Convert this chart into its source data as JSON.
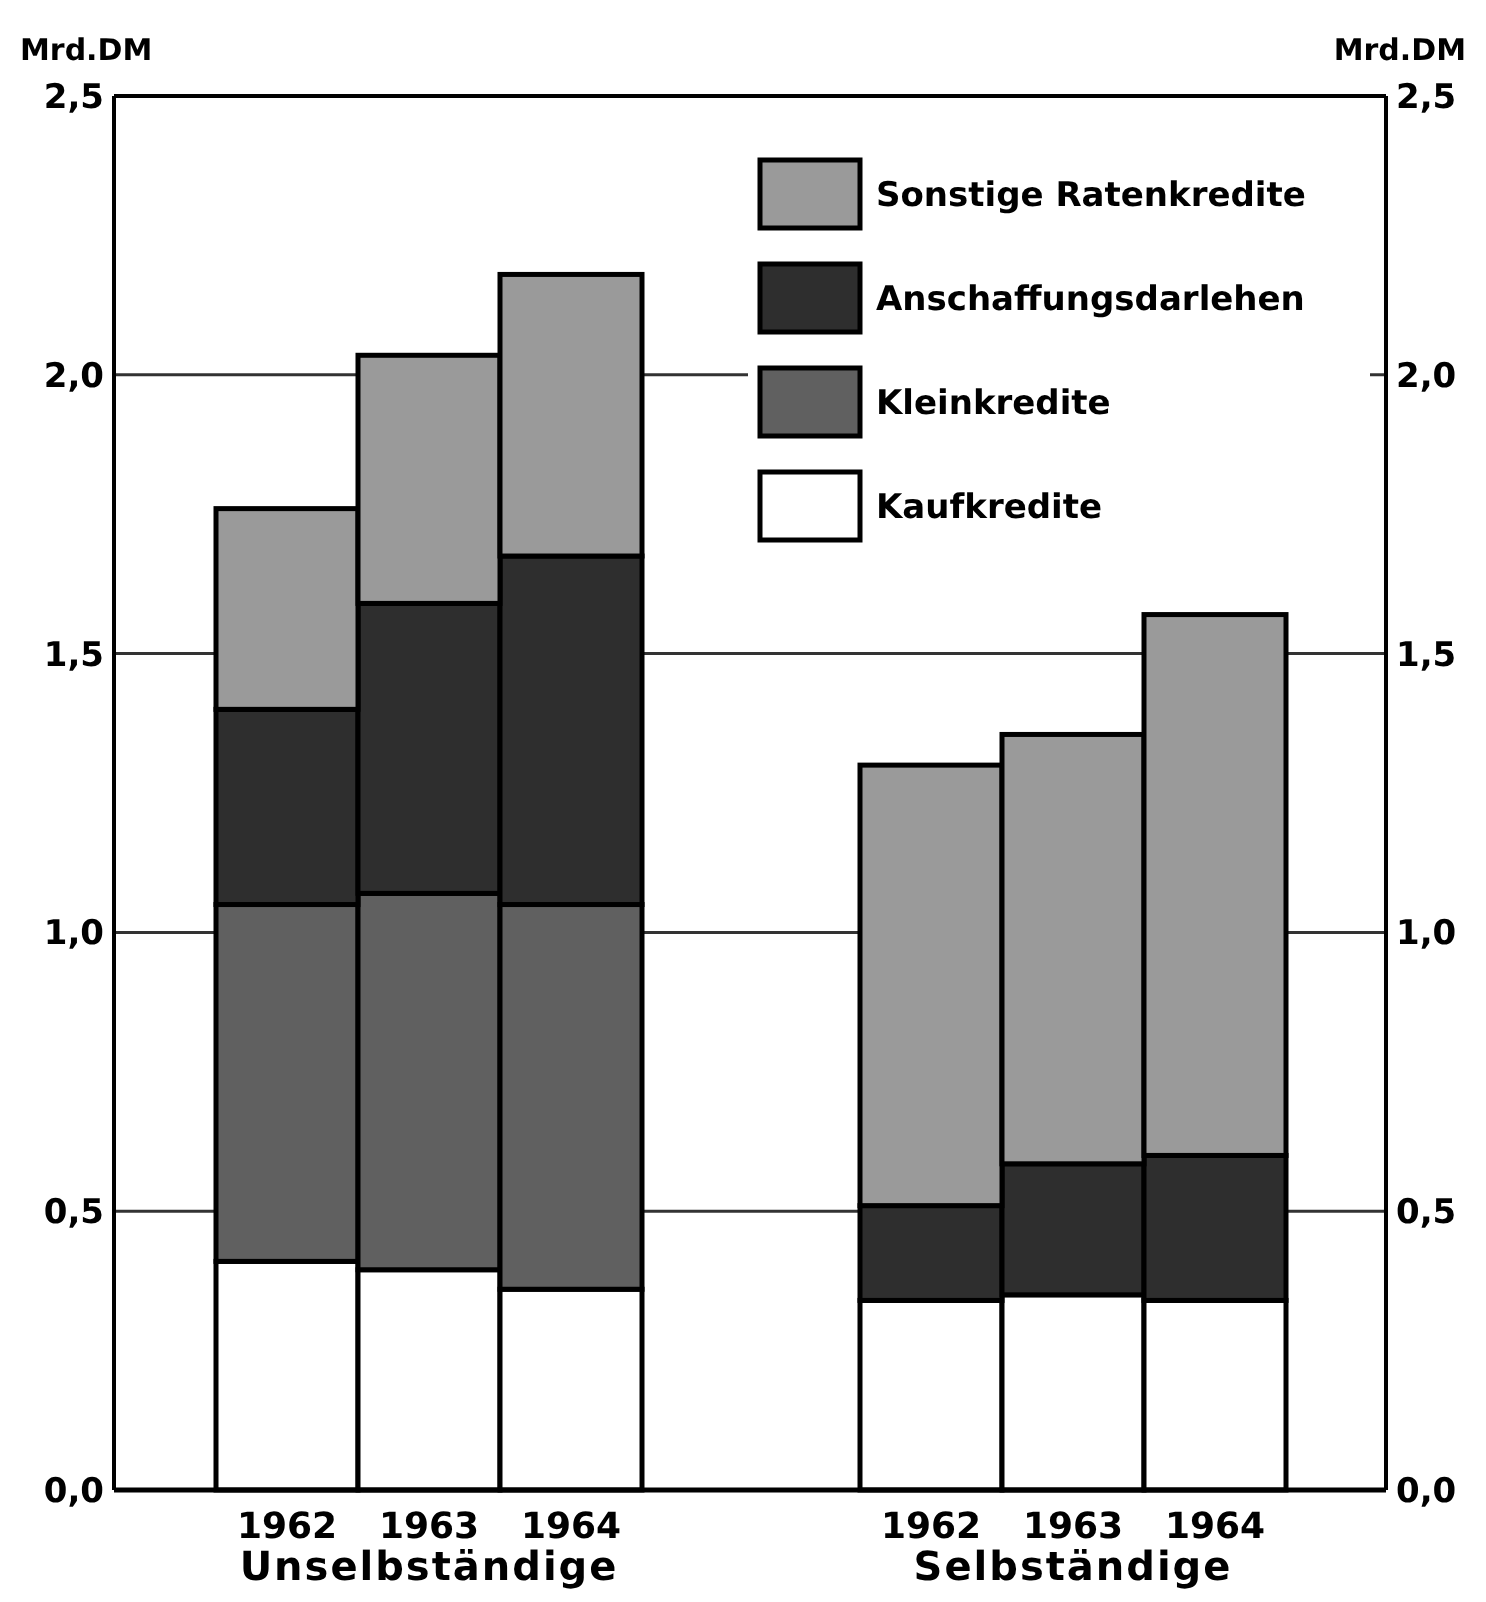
{
  "chart_data": {
    "type": "bar",
    "stacked": true,
    "categories": [
      "1962",
      "1963",
      "1964",
      "1962",
      "1963",
      "1964"
    ],
    "series": [
      {
        "name": "Kaufkredite",
        "color": "#ffffff",
        "values": [
          0.41,
          0.395,
          0.36,
          0.34,
          0.35,
          0.34
        ]
      },
      {
        "name": "Kleinkredite",
        "color": "#606060",
        "values": [
          0.64,
          0.675,
          0.69,
          null,
          null,
          null
        ]
      },
      {
        "name": "Anschaffungsdarlehen",
        "color": "#2e2e2e",
        "values": [
          0.35,
          0.52,
          0.625,
          0.17,
          0.235,
          0.26
        ]
      },
      {
        "name": "Sonstige Ratenkredite",
        "color": "#9a9a9a",
        "values": [
          0.36,
          0.445,
          0.505,
          0.79,
          0.77,
          0.97
        ]
      }
    ],
    "ylabel": "Mrd.DM",
    "y2label": "Mrd.DM",
    "ylim": [
      0,
      2.5
    ],
    "yticks": [
      {
        "value": 0,
        "label": "0,0"
      },
      {
        "value": 0.5,
        "label": "0,5"
      },
      {
        "value": 1,
        "label": "1,0"
      },
      {
        "value": 1.5,
        "label": "1,5"
      },
      {
        "value": 2,
        "label": "2,0"
      },
      {
        "value": 2.5,
        "label": "2,5"
      }
    ],
    "y2lim": [
      0,
      2.5
    ],
    "y2ticks": [
      {
        "value": 0,
        "label": "0,0"
      },
      {
        "value": 0.5,
        "label": "0,5"
      },
      {
        "value": 1,
        "label": "1,0"
      },
      {
        "value": 1.5,
        "label": "1,5"
      },
      {
        "value": 2,
        "label": "2,0"
      },
      {
        "value": 2.5,
        "label": "2,5"
      }
    ],
    "annotations": [
      "Unselbständige",
      "Selbständige"
    ],
    "grid": "y",
    "legend": "top right"
  }
}
